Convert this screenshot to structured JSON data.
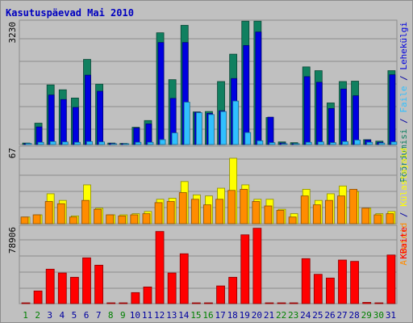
{
  "title": "Kasutuspäevad Mai 2010",
  "colors": {
    "background": "#c0c0c0",
    "grid": "#8c8c8c",
    "pages": "#0000e0",
    "hits": "#108060",
    "files": "#30c0ff",
    "visits": "#ff8c00",
    "sites": "#ffff00",
    "kbytes": "#ff0000",
    "weekday_label": "#0000a0",
    "weekend_label": "#008000"
  },
  "chart_data": [
    {
      "type": "bar",
      "panel": "hits-files-pages",
      "ymax_label": "3230",
      "ylim": [
        0,
        3230
      ],
      "grid": true,
      "x": [
        1,
        2,
        3,
        4,
        5,
        6,
        7,
        8,
        9,
        10,
        11,
        12,
        13,
        14,
        15,
        16,
        17,
        18,
        19,
        20,
        21,
        22,
        23,
        24,
        25,
        26,
        27,
        28,
        29,
        30,
        31
      ],
      "x_labels": [
        "1",
        "2",
        "3",
        "4",
        "5",
        "6",
        "7",
        "8",
        "9",
        "10",
        "11",
        "12",
        "13",
        "14",
        "15",
        "16",
        "17",
        "18",
        "19",
        "20",
        "21",
        "22",
        "23",
        "24",
        "25",
        "26",
        "27",
        "28",
        "29",
        "30",
        "31"
      ],
      "weekend_days": [
        1,
        2,
        8,
        9,
        15,
        16,
        22,
        23,
        29,
        30
      ],
      "series": [
        {
          "name": "Pöördumisi",
          "values": [
            40,
            570,
            1590,
            1460,
            1240,
            2270,
            1610,
            40,
            30,
            460,
            640,
            2980,
            1730,
            3180,
            870,
            880,
            1680,
            2410,
            3290,
            3290,
            720,
            70,
            50,
            2070,
            1970,
            1110,
            1680,
            1690,
            130,
            90,
            1970
          ]
        },
        {
          "name": "Faile",
          "values": [
            30,
            60,
            80,
            70,
            60,
            80,
            70,
            20,
            20,
            60,
            60,
            130,
            310,
            1130,
            850,
            800,
            880,
            1160,
            320,
            100,
            50,
            20,
            20,
            60,
            70,
            50,
            80,
            120,
            60,
            40,
            70
          ]
        },
        {
          "name": "Lehekülgi",
          "values": [
            20,
            470,
            1320,
            1200,
            990,
            1850,
            1420,
            30,
            20,
            440,
            550,
            2720,
            1230,
            2720,
            860,
            830,
            900,
            1760,
            2640,
            3000,
            730,
            40,
            20,
            1810,
            1660,
            960,
            1480,
            1300,
            120,
            60,
            1860
          ]
        }
      ],
      "side_labels": [
        {
          "text": "Pöördumisi",
          "color": "#108060"
        },
        {
          "text": " / ",
          "color": "#0000a0"
        },
        {
          "text": "Faile",
          "color": "#30c0ff"
        },
        {
          "text": " / ",
          "color": "#0000a0"
        },
        {
          "text": "Lehekülgi",
          "color": "#0000e0"
        }
      ]
    },
    {
      "type": "bar",
      "panel": "visits-sites",
      "ymax_label": "67",
      "ylim": [
        0,
        67
      ],
      "grid": true,
      "series": [
        {
          "name": "Külastajaid",
          "values": [
            6,
            8,
            27,
            21,
            7,
            35,
            14,
            8,
            8,
            9,
            11,
            22,
            23,
            38,
            26,
            25,
            32,
            59,
            35,
            22,
            22,
            13,
            9,
            31,
            21,
            27,
            34,
            29,
            14,
            9,
            11
          ]
        },
        {
          "name": "Arvuteid",
          "values": [
            6,
            8,
            20,
            18,
            6,
            21,
            13,
            8,
            7,
            8,
            9,
            19,
            20,
            28,
            22,
            17,
            22,
            30,
            31,
            20,
            16,
            12,
            6,
            25,
            17,
            21,
            25,
            31,
            14,
            8,
            9
          ]
        }
      ],
      "side_labels": [
        {
          "text": "Arvuteid",
          "color": "#ff8c00"
        },
        {
          "text": " / ",
          "color": "#0000a0"
        },
        {
          "text": "Külastajaid",
          "color": "#ffff00"
        }
      ]
    },
    {
      "type": "bar",
      "panel": "kbytes",
      "ymax_label": "78906",
      "ylim": [
        0,
        78906
      ],
      "grid": true,
      "series": [
        {
          "name": "KBaite",
          "values": [
            300,
            13300,
            36200,
            32200,
            27700,
            48100,
            40400,
            300,
            200,
            11600,
            17500,
            75800,
            32200,
            52400,
            500,
            500,
            18600,
            27700,
            72300,
            79200,
            400,
            200,
            300,
            47300,
            30800,
            26900,
            45800,
            44400,
            1300,
            700,
            51100
          ]
        }
      ],
      "side_labels": [
        {
          "text": "KBaite",
          "color": "#ff0000"
        }
      ]
    }
  ]
}
